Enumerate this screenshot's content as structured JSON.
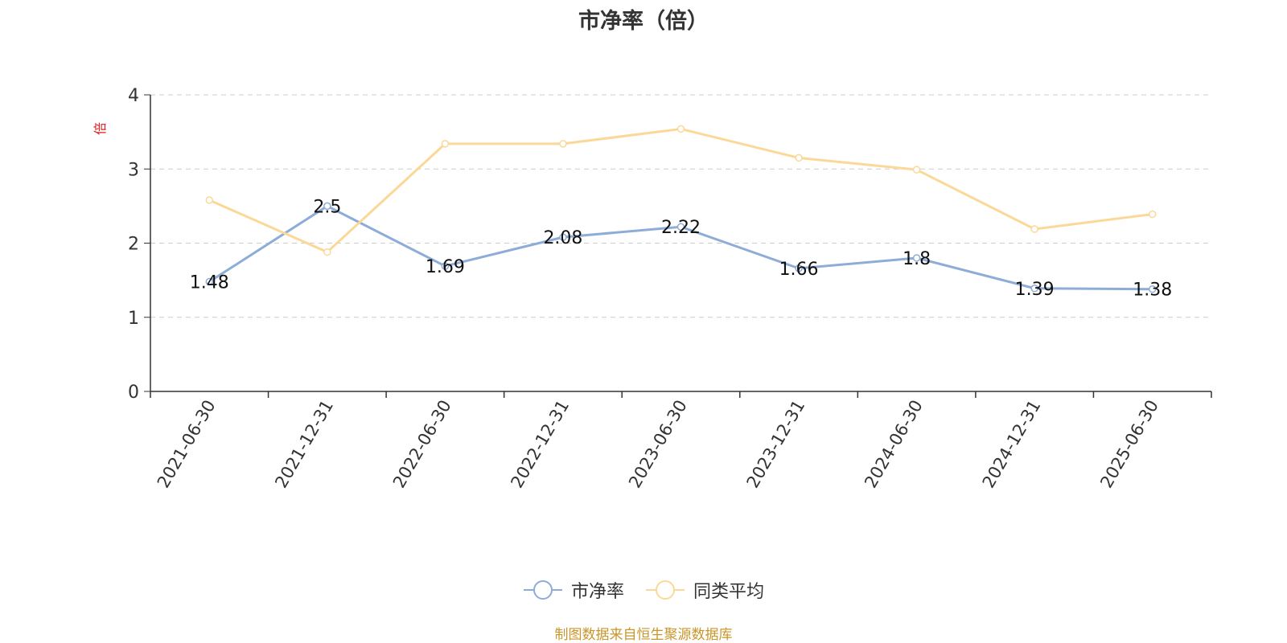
{
  "chart_data": {
    "type": "line",
    "title": "市净率（倍）",
    "ylabel": "倍",
    "xlabel": "",
    "ylim": [
      0,
      4
    ],
    "yticks": [
      "0",
      "1",
      "2",
      "3",
      "4"
    ],
    "categories": [
      "2021-06-30",
      "2021-12-31",
      "2022-06-30",
      "2022-12-31",
      "2023-06-30",
      "2023-12-31",
      "2024-06-30",
      "2024-12-31",
      "2025-06-30"
    ],
    "series": [
      {
        "name": "市净率",
        "color": "#8eacd8",
        "values": [
          1.48,
          2.5,
          1.69,
          2.08,
          2.22,
          1.66,
          1.8,
          1.39,
          1.38
        ],
        "labels": [
          "1.48",
          "2.5",
          "1.69",
          "2.08",
          "2.22",
          "1.66",
          "1.8",
          "1.39",
          "1.38"
        ]
      },
      {
        "name": "同类平均",
        "color": "#fcd898",
        "values": [
          2.58,
          1.88,
          3.34,
          3.34,
          3.54,
          3.15,
          2.99,
          2.19,
          2.39
        ]
      }
    ],
    "grid": true,
    "legend_position": "bottom-center"
  },
  "footer": {
    "source": "制图数据来自恒生聚源数据库"
  }
}
